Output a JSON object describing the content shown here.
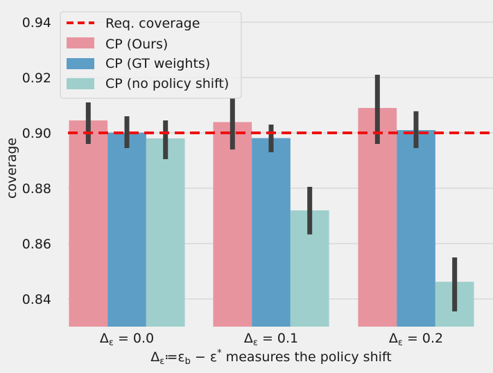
{
  "chart_data": {
    "type": "bar",
    "categories": [
      "Δε = 0.0",
      "Δε = 0.1",
      "Δε = 0.2"
    ],
    "category_labels": [
      {
        "main": "Δ",
        "sub": "ε",
        "rest": " = 0.0"
      },
      {
        "main": "Δ",
        "sub": "ε",
        "rest": " = 0.1"
      },
      {
        "main": "Δ",
        "sub": "ε",
        "rest": " = 0.2"
      }
    ],
    "series": [
      {
        "name": "CP (Ours)",
        "color": "#e8949f",
        "values": [
          0.9045,
          0.9039,
          0.909
        ],
        "err_low": [
          0.896,
          0.894,
          0.896
        ],
        "err_high": [
          0.911,
          0.9125,
          0.921
        ]
      },
      {
        "name": "CP (GT weights)",
        "color": "#5d9ec6",
        "values": [
          0.9001,
          0.8981,
          0.901
        ],
        "err_low": [
          0.8945,
          0.893,
          0.8945
        ],
        "err_high": [
          0.906,
          0.903,
          0.9078
        ]
      },
      {
        "name": "CP (no policy shift)",
        "color": "#9ecfcc",
        "values": [
          0.898,
          0.872,
          0.8462
        ],
        "err_low": [
          0.8905,
          0.8633,
          0.8355
        ],
        "err_high": [
          0.9045,
          0.8805,
          0.855
        ]
      }
    ],
    "reference_line": {
      "name": "Req. coverage",
      "value": 0.9,
      "color": "#ee1111",
      "style": "dashed"
    },
    "ylabel": "coverage",
    "xlabel": "Δε≔εb − ε* measures the policy shift",
    "xlabel_parts": {
      "a": "Δ",
      "a_sub": "ε",
      "b": "≔ε",
      "b_sub": "b",
      "c": " − ε",
      "c_sup": "*",
      "d": " measures the policy shift"
    },
    "ylim": [
      0.83,
      0.948
    ],
    "yticks": [
      0.84,
      0.86,
      0.88,
      0.9,
      0.92,
      0.94
    ],
    "ytick_labels": [
      "0.84",
      "0.86",
      "0.88",
      "0.90",
      "0.92",
      "0.94"
    ],
    "grid": true,
    "legend_position": "top-left",
    "errorbar_color": "#3f3f3f"
  }
}
